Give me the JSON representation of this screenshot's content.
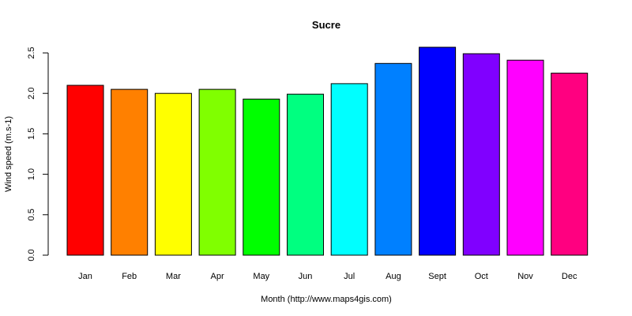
{
  "chart_data": {
    "type": "bar",
    "title": "Sucre",
    "xlabel": "Month (http://www.maps4gis.com)",
    "ylabel": "Wind speed (m.s-1)",
    "ylim": [
      0,
      2.5
    ],
    "yticks": [
      "0.0",
      "0.5",
      "1.0",
      "1.5",
      "2.0",
      "2.5"
    ],
    "grid": false,
    "categories": [
      "Jan",
      "Feb",
      "Mar",
      "Apr",
      "May",
      "Jun",
      "Jul",
      "Aug",
      "Sept",
      "Oct",
      "Nov",
      "Dec"
    ],
    "values": [
      2.1,
      2.05,
      2.0,
      2.05,
      1.93,
      1.99,
      2.12,
      2.37,
      2.57,
      2.49,
      2.41,
      2.25
    ],
    "colors": [
      "#FF0000",
      "#FF8000",
      "#FFFF00",
      "#80FF00",
      "#00FF00",
      "#00FF80",
      "#00FFFF",
      "#0080FF",
      "#0000FF",
      "#8000FF",
      "#FF00FF",
      "#FF0080"
    ]
  }
}
